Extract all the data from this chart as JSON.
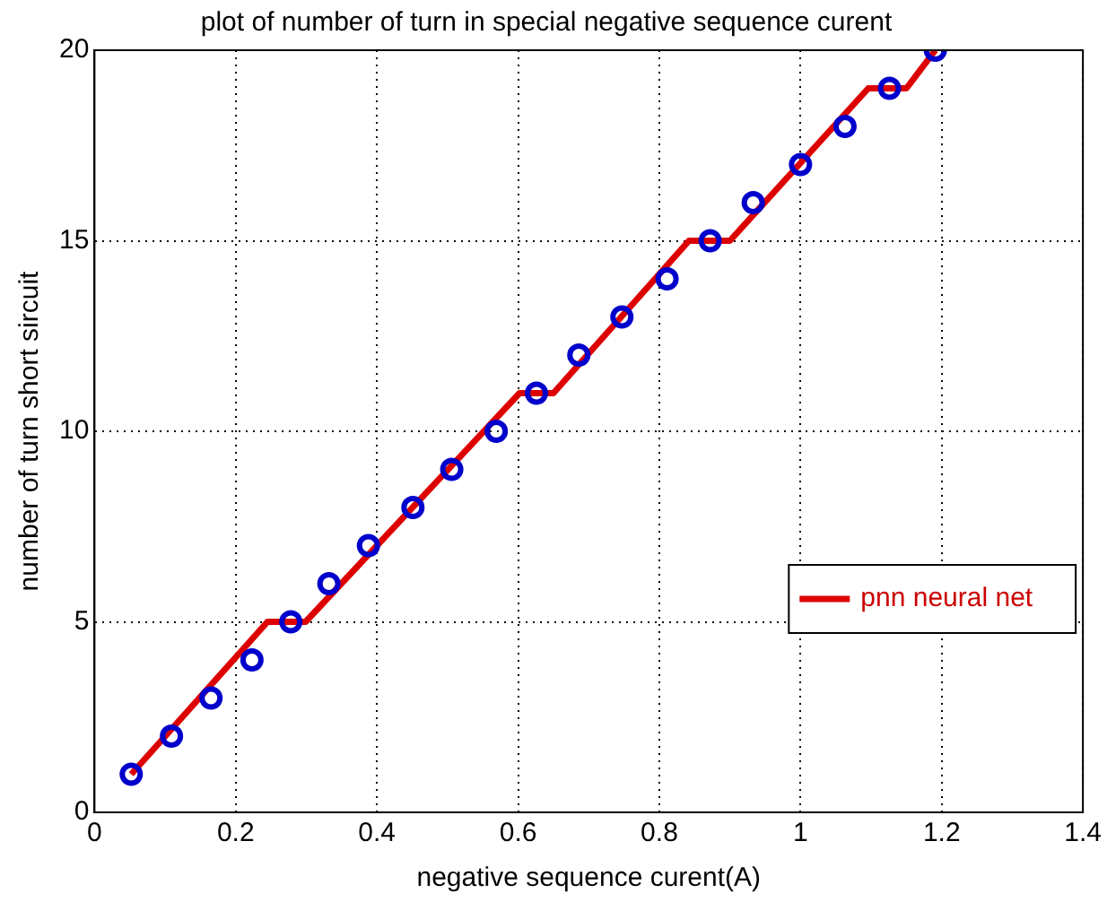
{
  "chart_data": {
    "type": "scatter",
    "title": "plot of number of turn in special negative sequence curent",
    "xlabel": "negative sequence curent(A)",
    "ylabel": "number of turn short sircuit",
    "xlim": [
      0,
      1.4
    ],
    "xticks": [
      0,
      0.2,
      0.4,
      0.6,
      0.8,
      1,
      1.2,
      1.4
    ],
    "ylim": [
      0,
      20
    ],
    "yticks": [
      0,
      5,
      10,
      15,
      20
    ],
    "grid": true,
    "legend": "bottom right",
    "series": [
      {
        "color": "#0000cc",
        "marker": "circle",
        "x": [
          0.052,
          0.109,
          0.165,
          0.223,
          0.278,
          0.332,
          0.388,
          0.451,
          0.506,
          0.569,
          0.626,
          0.686,
          0.747,
          0.811,
          0.872,
          0.933,
          1.0,
          1.063,
          1.126,
          1.191
        ],
        "values": [
          1,
          2,
          3,
          4,
          5,
          6,
          7,
          8,
          9,
          10,
          11,
          12,
          13,
          14,
          15,
          16,
          17,
          18,
          19,
          20
        ]
      },
      {
        "type": "line",
        "name": "pnn neural net",
        "color": "#dd0000",
        "marker": "none",
        "x": [
          0.052,
          0.245,
          0.299,
          0.602,
          0.65,
          0.842,
          0.9,
          1.096,
          1.15,
          1.191
        ],
        "values": [
          1,
          5,
          5,
          11,
          11,
          15,
          15,
          19,
          19,
          20
        ]
      }
    ]
  }
}
